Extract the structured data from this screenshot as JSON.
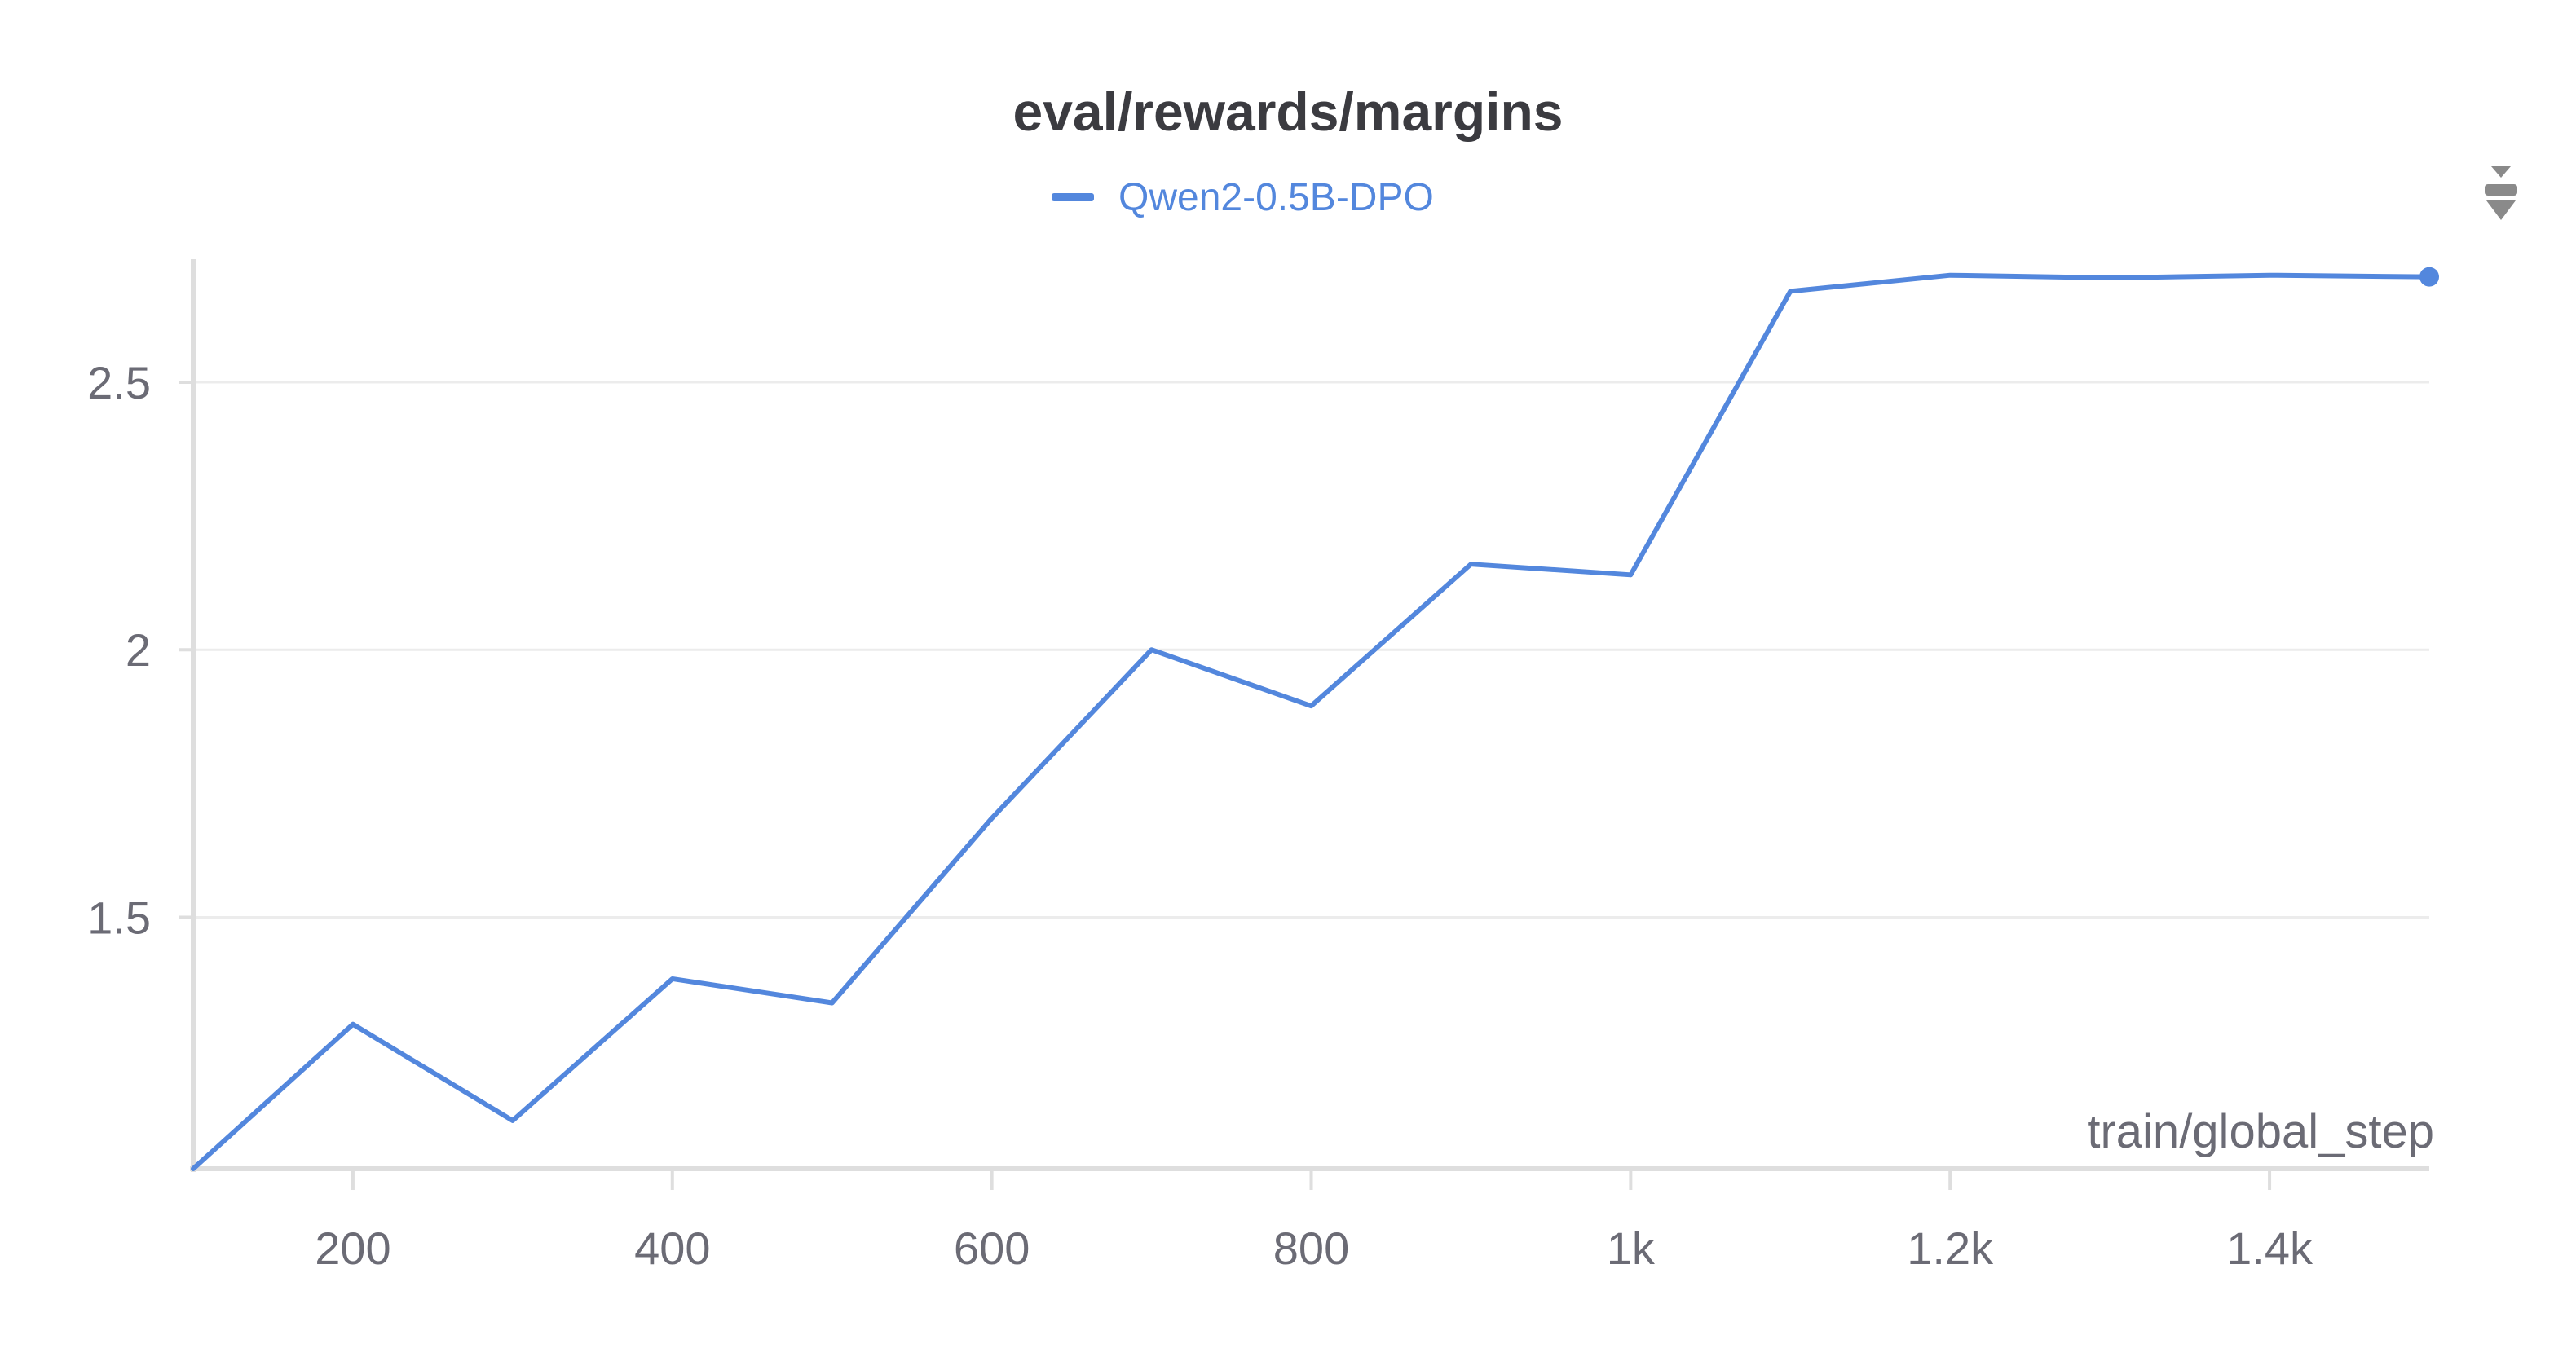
{
  "colors": {
    "series": "#5387dd",
    "axis": "#dedede",
    "grid": "#ececec",
    "text": "#6b6b75",
    "title": "#3b3b40",
    "menu_icon": "#8a8a8a"
  },
  "menu_icon": "chevron-sort-icon",
  "chart_data": {
    "type": "line",
    "title": "eval/rewards/margins",
    "xlabel": "train/global_step",
    "ylabel": "",
    "xlim": [
      100,
      1500
    ],
    "ylim": [
      1.03,
      2.73
    ],
    "grid": true,
    "legend_position": "top-center",
    "x_ticks": [
      200,
      400,
      600,
      800,
      1000,
      1200,
      1400
    ],
    "x_tick_labels": [
      "200",
      "400",
      "600",
      "800",
      "1k",
      "1.2k",
      "1.4k"
    ],
    "y_ticks": [
      1.5,
      2,
      2.5
    ],
    "y_tick_labels": [
      "1.5",
      "2",
      "2.5"
    ],
    "x": [
      100,
      200,
      300,
      400,
      500,
      600,
      700,
      800,
      900,
      1000,
      1100,
      1200,
      1300,
      1400,
      1500
    ],
    "series": [
      {
        "name": "Qwen2-0.5B-DPO",
        "values": [
          1.03,
          1.3,
          1.12,
          1.385,
          1.34,
          1.685,
          2.0,
          1.895,
          2.16,
          2.14,
          2.67,
          2.7,
          2.695,
          2.7,
          2.697
        ]
      }
    ]
  }
}
